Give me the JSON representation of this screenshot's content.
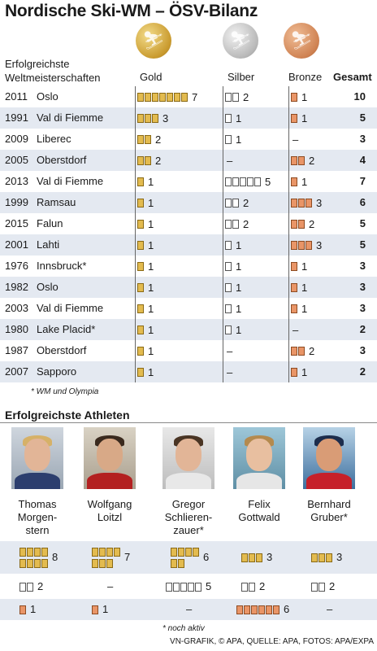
{
  "title": "Nordische Ski-WM – ÖSV-Bilanz",
  "subtitle": [
    "Erfolgreichste",
    "Weltmeisterschaften"
  ],
  "colors": {
    "gold": "#e3bb4f",
    "silver": "#ffffff",
    "bronze": "#e99567",
    "row_alt": "#e4e9f1"
  },
  "medal_icons": [
    "gold-medal-icon",
    "silver-medal-icon",
    "bronze-medal-icon"
  ],
  "chart_data": {
    "type": "table",
    "columns": [
      "Gold",
      "Silber",
      "Bronze",
      "Gesamt"
    ],
    "rows": [
      {
        "year": "2011",
        "place": "Oslo",
        "gold": 7,
        "silver": 2,
        "bronze": 1,
        "total": 10
      },
      {
        "year": "1991",
        "place": "Val di Fiemme",
        "gold": 3,
        "silver": 1,
        "bronze": 1,
        "total": 5
      },
      {
        "year": "2009",
        "place": "Liberec",
        "gold": 2,
        "silver": 1,
        "bronze": 0,
        "total": 3
      },
      {
        "year": "2005",
        "place": "Oberstdorf",
        "gold": 2,
        "silver": 0,
        "bronze": 2,
        "total": 4
      },
      {
        "year": "2013",
        "place": "Val di Fiemme",
        "gold": 1,
        "silver": 5,
        "bronze": 1,
        "total": 7
      },
      {
        "year": "1999",
        "place": "Ramsau",
        "gold": 1,
        "silver": 2,
        "bronze": 3,
        "total": 6
      },
      {
        "year": "2015",
        "place": "Falun",
        "gold": 1,
        "silver": 2,
        "bronze": 2,
        "total": 5
      },
      {
        "year": "2001",
        "place": "Lahti",
        "gold": 1,
        "silver": 1,
        "bronze": 3,
        "total": 5
      },
      {
        "year": "1976",
        "place": "Innsbruck*",
        "gold": 1,
        "silver": 1,
        "bronze": 1,
        "total": 3
      },
      {
        "year": "1982",
        "place": "Oslo",
        "gold": 1,
        "silver": 1,
        "bronze": 1,
        "total": 3
      },
      {
        "year": "2003",
        "place": "Val di Fiemme",
        "gold": 1,
        "silver": 1,
        "bronze": 1,
        "total": 3
      },
      {
        "year": "1980",
        "place": "Lake Placid*",
        "gold": 1,
        "silver": 1,
        "bronze": 0,
        "total": 2
      },
      {
        "year": "1987",
        "place": "Oberstdorf",
        "gold": 1,
        "silver": 0,
        "bronze": 2,
        "total": 3
      },
      {
        "year": "2007",
        "place": "Sapporo",
        "gold": 1,
        "silver": 0,
        "bronze": 1,
        "total": 2
      }
    ],
    "footnote": "* WM und Olympia",
    "athletes_title": "Erfolgreichste Athleten",
    "athletes": [
      {
        "name": [
          "Thomas",
          "Morgen-",
          "stern"
        ],
        "gold": 8,
        "silver": 2,
        "bronze": 1
      },
      {
        "name": [
          "Wolfgang",
          "Loitzl"
        ],
        "gold": 7,
        "silver": 0,
        "bronze": 1
      },
      {
        "name": [
          "Gregor",
          "Schlieren-",
          "zauer*"
        ],
        "gold": 6,
        "silver": 5,
        "bronze": 0
      },
      {
        "name": [
          "Felix",
          "Gottwald"
        ],
        "gold": 3,
        "silver": 2,
        "bronze": 6
      },
      {
        "name": [
          "Bernhard",
          "Gruber*"
        ],
        "gold": 3,
        "silver": 2,
        "bronze": 0
      }
    ],
    "athletes_footnote": "* noch aktiv"
  },
  "dash": "–",
  "credit": "VN-GRAFIK, © APA, QUELLE: APA, FOTOS: APA/EXPA"
}
